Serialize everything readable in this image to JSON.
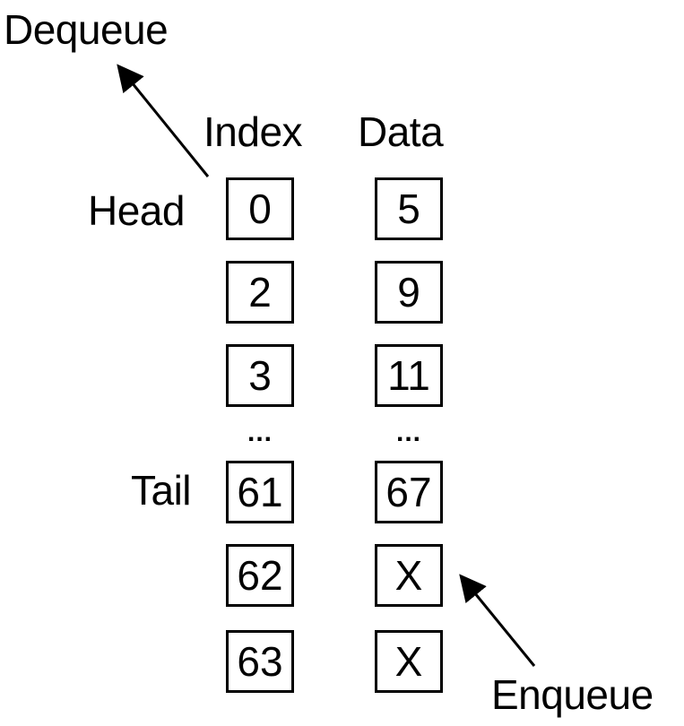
{
  "labels": {
    "dequeue": "Dequeue",
    "enqueue": "Enqueue",
    "index_header": "Index",
    "data_header": "Data",
    "head": "Head",
    "tail": "Tail"
  },
  "index_cells": [
    "0",
    "2",
    "3",
    "61",
    "62",
    "63"
  ],
  "data_cells": [
    "5",
    "9",
    "11",
    "67",
    "X",
    "X"
  ],
  "ellipsis": "...",
  "colors": {
    "stroke": "#000000",
    "background": "#ffffff"
  }
}
